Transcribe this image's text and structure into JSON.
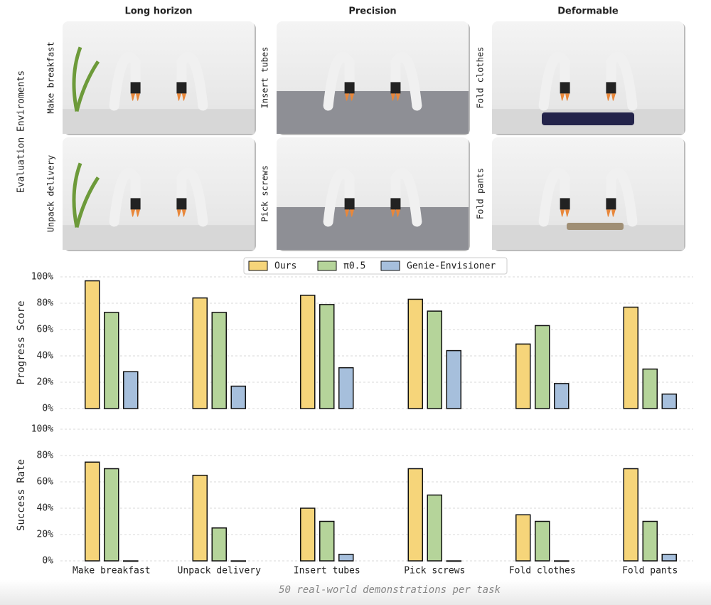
{
  "figure": {
    "side_label": "Evaluation Enviroments",
    "columns": [
      {
        "title": "Long horizon",
        "tasks": [
          "Make breakfast",
          "Unpack delivery"
        ]
      },
      {
        "title": "Precision",
        "tasks": [
          "Insert tubes",
          "Pick screws"
        ]
      },
      {
        "title": "Deformable",
        "tasks": [
          "Fold clothes",
          "Fold pants"
        ]
      }
    ],
    "caption": "50 real-world demonstrations per task"
  },
  "chart_data": [
    {
      "type": "bar",
      "y_label": "Progress Score",
      "series": [
        {
          "name": "Ours",
          "color": "#f6d57a",
          "values": [
            97,
            84,
            86,
            83,
            49,
            77
          ]
        },
        {
          "name": "π0.5",
          "color": "#b5d49a",
          "values": [
            73,
            73,
            79,
            74,
            63,
            30
          ]
        },
        {
          "name": "Genie-Envisioner",
          "color": "#a6bfdc",
          "values": [
            28,
            17,
            31,
            44,
            19,
            11
          ]
        }
      ],
      "ylim": [
        0,
        100
      ],
      "yticks": [
        {
          "value": 0,
          "label": "0%"
        },
        {
          "value": 20,
          "label": "20%"
        },
        {
          "value": 40,
          "label": "40%"
        },
        {
          "value": 60,
          "label": "60%"
        },
        {
          "value": 80,
          "label": "80%"
        },
        {
          "value": 100,
          "label": "100%"
        }
      ],
      "grid": true,
      "legend": "top"
    },
    {
      "type": "bar",
      "y_label": "Success Rate",
      "categories": [
        "Make breakfast",
        "Unpack delivery",
        "Insert tubes",
        "Pick screws",
        "Fold clothes",
        "Fold pants"
      ],
      "series": [
        {
          "color": "#f6d57a",
          "values": [
            75,
            65,
            40,
            70,
            35,
            70
          ]
        },
        {
          "color": "#b5d49a",
          "values": [
            70,
            25,
            30,
            50,
            30,
            30
          ]
        },
        {
          "color": "#a6bfdc",
          "values": [
            0,
            0,
            5,
            0,
            0,
            5
          ]
        }
      ],
      "ylim": [
        0,
        100
      ],
      "yticks": [
        {
          "value": 0,
          "label": "0%"
        },
        {
          "value": 20,
          "label": "20%"
        },
        {
          "value": 40,
          "label": "40%"
        },
        {
          "value": 60,
          "label": "60%"
        },
        {
          "value": 80,
          "label": "80%"
        },
        {
          "value": 100,
          "label": "100%"
        }
      ],
      "grid": true
    }
  ]
}
